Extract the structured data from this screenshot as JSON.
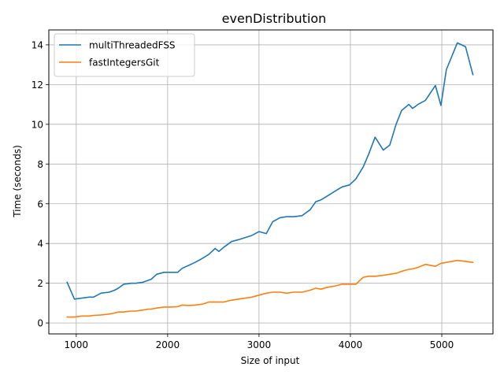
{
  "chart_data": {
    "type": "line",
    "title": "evenDistribution",
    "xlabel": "Size of input",
    "ylabel": "Time (seconds)",
    "xlim": [
      700,
      5560
    ],
    "ylim": [
      -0.55,
      14.75
    ],
    "xticks": [
      1000,
      2000,
      3000,
      4000,
      5000
    ],
    "yticks": [
      0,
      2,
      4,
      6,
      8,
      10,
      12,
      14
    ],
    "grid": true,
    "legend_position": "upper-left",
    "x": [
      900,
      980,
      1060,
      1140,
      1190,
      1270,
      1360,
      1420,
      1460,
      1520,
      1600,
      1650,
      1730,
      1790,
      1820,
      1880,
      1960,
      2020,
      2110,
      2160,
      2230,
      2300,
      2380,
      2450,
      2520,
      2560,
      2610,
      2700,
      2780,
      2850,
      2920,
      3000,
      3080,
      3150,
      3230,
      3300,
      3380,
      3470,
      3560,
      3620,
      3680,
      3750,
      3820,
      3910,
      3990,
      4060,
      4140,
      4200,
      4270,
      4360,
      4430,
      4500,
      4560,
      4640,
      4680,
      4740,
      4820,
      4930,
      4990,
      5050,
      5170,
      5260,
      5340
    ],
    "series": [
      {
        "name": "multiThreadedFSS",
        "color": "#1f77b4",
        "values": [
          2.05,
          1.2,
          1.25,
          1.3,
          1.3,
          1.5,
          1.55,
          1.65,
          1.75,
          1.95,
          2.0,
          2.0,
          2.05,
          2.15,
          2.2,
          2.45,
          2.55,
          2.55,
          2.55,
          2.75,
          2.9,
          3.05,
          3.25,
          3.45,
          3.75,
          3.6,
          3.8,
          4.1,
          4.2,
          4.3,
          4.4,
          4.6,
          4.5,
          5.1,
          5.3,
          5.35,
          5.35,
          5.4,
          5.7,
          6.1,
          6.2,
          6.4,
          6.6,
          6.85,
          6.95,
          7.25,
          7.85,
          8.5,
          9.35,
          8.7,
          8.95,
          10.0,
          10.7,
          11.0,
          10.8,
          11.0,
          11.2,
          11.95,
          10.95,
          12.75,
          14.1,
          13.9,
          12.5
        ]
      },
      {
        "name": "fastIntegersGit",
        "color": "#ff7f0e",
        "values": [
          0.3,
          0.3,
          0.35,
          0.35,
          0.38,
          0.4,
          0.45,
          0.5,
          0.55,
          0.55,
          0.6,
          0.6,
          0.65,
          0.7,
          0.7,
          0.75,
          0.8,
          0.8,
          0.82,
          0.9,
          0.88,
          0.9,
          0.95,
          1.05,
          1.05,
          1.05,
          1.05,
          1.15,
          1.2,
          1.25,
          1.3,
          1.4,
          1.5,
          1.55,
          1.55,
          1.5,
          1.55,
          1.55,
          1.65,
          1.75,
          1.7,
          1.8,
          1.85,
          1.95,
          1.95,
          1.95,
          2.3,
          2.35,
          2.35,
          2.4,
          2.45,
          2.5,
          2.6,
          2.7,
          2.72,
          2.8,
          2.95,
          2.85,
          3.0,
          3.05,
          3.15,
          3.1,
          3.05
        ]
      }
    ]
  }
}
